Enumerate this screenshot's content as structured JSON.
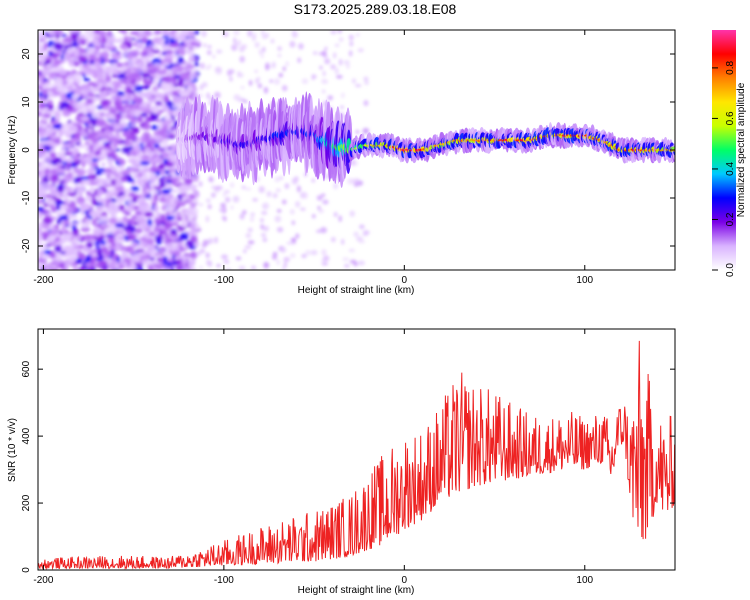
{
  "title": "S173.2025.289.03.18.E08",
  "chart_data": [
    {
      "type": "heatmap",
      "panel": "spectrogram",
      "xlabel": "Height of straight line (km)",
      "ylabel": "Frequency (Hz)",
      "xlim": [
        -203,
        150
      ],
      "ylim": [
        -25,
        25
      ],
      "xticks": [
        -200,
        -100,
        0,
        100
      ],
      "yticks": [
        -20,
        -10,
        0,
        10,
        20
      ],
      "ridge": {
        "x": [
          -125,
          -110,
          -100,
          -90,
          -80,
          -70,
          -60,
          -50,
          -40,
          -30,
          -20,
          -10,
          0,
          10,
          20,
          30,
          40,
          50,
          60,
          70,
          80,
          90,
          100,
          110,
          120,
          130,
          140,
          150
        ],
        "frequency": [
          2,
          3,
          2,
          1,
          2,
          3,
          4,
          3,
          1,
          0,
          1,
          1,
          0,
          0,
          1,
          2,
          2,
          2,
          2,
          2,
          3,
          3,
          3,
          2,
          0,
          0,
          0,
          0
        ],
        "amplitude": [
          0.1,
          0.2,
          0.25,
          0.25,
          0.25,
          0.3,
          0.3,
          0.3,
          0.5,
          0.6,
          0.7,
          0.8,
          0.95,
          0.9,
          0.75,
          0.8,
          0.8,
          0.85,
          0.9,
          0.9,
          0.85,
          0.85,
          0.9,
          0.8,
          0.85,
          0.9,
          0.8,
          0.75
        ]
      },
      "colorbar": {
        "label": "Normalized spectral amplitude",
        "range": [
          0,
          0.95
        ],
        "ticks": [
          "0.0",
          "0.2",
          "0.4",
          "0.6",
          "0.8"
        ],
        "stops": [
          "#ffffff",
          "#d9b3ff",
          "#7a00e6",
          "#0000ff",
          "#00c8ff",
          "#00ff66",
          "#c8ff00",
          "#ffe600",
          "#ff8000",
          "#ff0000",
          "#ff33aa"
        ]
      }
    },
    {
      "type": "line",
      "panel": "snr",
      "xlabel": "Height of straight line (km)",
      "ylabel": "SNR (10 * v/v)",
      "xlim": [
        -203,
        150
      ],
      "ylim": [
        0,
        720
      ],
      "xticks": [
        -200,
        -100,
        0,
        100
      ],
      "yticks": [
        0,
        200,
        400,
        600
      ],
      "color": "#ee2222",
      "envelope": {
        "x": [
          -203,
          -160,
          -130,
          -110,
          -90,
          -70,
          -50,
          -30,
          -20,
          -10,
          0,
          10,
          20,
          30,
          40,
          50,
          60,
          70,
          80,
          90,
          100,
          110,
          115,
          118,
          122,
          125,
          130,
          135,
          140,
          145,
          150
        ],
        "low": [
          5,
          5,
          5,
          10,
          15,
          20,
          25,
          40,
          60,
          80,
          120,
          150,
          200,
          230,
          250,
          260,
          270,
          280,
          290,
          300,
          300,
          320,
          250,
          350,
          380,
          200,
          50,
          100,
          200,
          150,
          200
        ],
        "high": [
          35,
          45,
          40,
          70,
          110,
          150,
          180,
          230,
          300,
          360,
          420,
          430,
          500,
          600,
          560,
          540,
          500,
          470,
          460,
          480,
          460,
          480,
          440,
          500,
          520,
          480,
          700,
          600,
          490,
          450,
          480
        ]
      }
    }
  ]
}
